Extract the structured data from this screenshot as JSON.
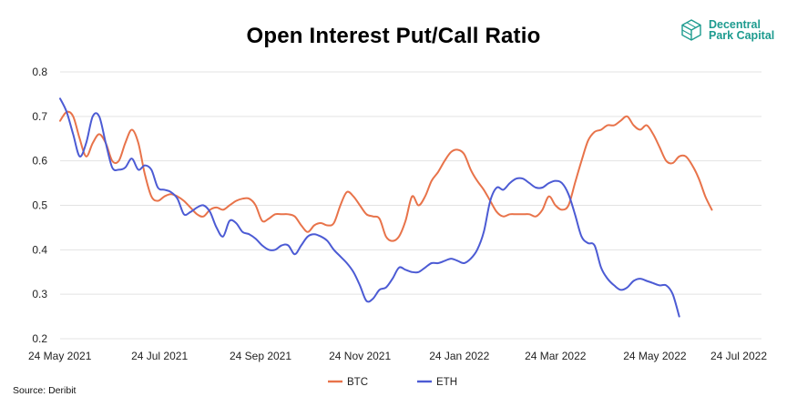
{
  "title": "Open Interest Put/Call Ratio",
  "logo": {
    "line1": "Decentral",
    "line2": "Park Capital",
    "color": "#1d9b8f"
  },
  "source": "Source: Deribit",
  "chart_data": {
    "type": "line",
    "title": "Open Interest Put/Call Ratio",
    "xlabel": "",
    "ylabel": "",
    "ylim": [
      0.2,
      0.8
    ],
    "yticks": [
      0.2,
      0.3,
      0.4,
      0.5,
      0.6,
      0.7,
      0.8
    ],
    "ytick_labels": [
      "0.2",
      "0.3",
      "0.4",
      "0.5",
      "0.6",
      "0.7",
      "0.8"
    ],
    "xlim": [
      "2021-05-24",
      "2022-07-24"
    ],
    "xticks": [
      "2021-05-24",
      "2021-07-24",
      "2021-09-24",
      "2021-11-24",
      "2022-01-24",
      "2022-03-24",
      "2022-05-24",
      "2022-07-24"
    ],
    "xtick_labels": [
      "24 May 2021",
      "24 Jul 2021",
      "24 Sep 2021",
      "24 Nov 2021",
      "24 Jan 2022",
      "24 Mar 2022",
      "24 May 2022",
      "24 Jul 2022"
    ],
    "grid": "horizontal",
    "legend_position": "bottom",
    "series": [
      {
        "name": "BTC",
        "color": "#e8734a",
        "points": [
          [
            "2021-05-24",
            0.69
          ],
          [
            "2021-05-28",
            0.71
          ],
          [
            "2021-06-01",
            0.7
          ],
          [
            "2021-06-05",
            0.65
          ],
          [
            "2021-06-09",
            0.61
          ],
          [
            "2021-06-13",
            0.64
          ],
          [
            "2021-06-17",
            0.66
          ],
          [
            "2021-06-21",
            0.64
          ],
          [
            "2021-06-25",
            0.6
          ],
          [
            "2021-06-29",
            0.6
          ],
          [
            "2021-07-03",
            0.64
          ],
          [
            "2021-07-07",
            0.67
          ],
          [
            "2021-07-11",
            0.64
          ],
          [
            "2021-07-15",
            0.57
          ],
          [
            "2021-07-19",
            0.52
          ],
          [
            "2021-07-23",
            0.51
          ],
          [
            "2021-07-27",
            0.52
          ],
          [
            "2021-07-31",
            0.525
          ],
          [
            "2021-08-04",
            0.52
          ],
          [
            "2021-08-08",
            0.51
          ],
          [
            "2021-08-12",
            0.495
          ],
          [
            "2021-08-16",
            0.48
          ],
          [
            "2021-08-20",
            0.475
          ],
          [
            "2021-08-24",
            0.49
          ],
          [
            "2021-08-28",
            0.495
          ],
          [
            "2021-09-01",
            0.49
          ],
          [
            "2021-09-05",
            0.5
          ],
          [
            "2021-09-09",
            0.51
          ],
          [
            "2021-09-13",
            0.515
          ],
          [
            "2021-09-17",
            0.515
          ],
          [
            "2021-09-21",
            0.5
          ],
          [
            "2021-09-25",
            0.465
          ],
          [
            "2021-09-29",
            0.47
          ],
          [
            "2021-10-03",
            0.48
          ],
          [
            "2021-10-07",
            0.48
          ],
          [
            "2021-10-11",
            0.48
          ],
          [
            "2021-10-15",
            0.475
          ],
          [
            "2021-10-19",
            0.455
          ],
          [
            "2021-10-23",
            0.44
          ],
          [
            "2021-10-27",
            0.455
          ],
          [
            "2021-10-31",
            0.46
          ],
          [
            "2021-11-04",
            0.455
          ],
          [
            "2021-11-08",
            0.46
          ],
          [
            "2021-11-12",
            0.5
          ],
          [
            "2021-11-16",
            0.53
          ],
          [
            "2021-11-20",
            0.52
          ],
          [
            "2021-11-24",
            0.5
          ],
          [
            "2021-11-28",
            0.48
          ],
          [
            "2021-12-02",
            0.475
          ],
          [
            "2021-12-06",
            0.47
          ],
          [
            "2021-12-10",
            0.43
          ],
          [
            "2021-12-14",
            0.42
          ],
          [
            "2021-12-18",
            0.43
          ],
          [
            "2021-12-22",
            0.465
          ],
          [
            "2021-12-26",
            0.52
          ],
          [
            "2021-12-30",
            0.5
          ],
          [
            "2022-01-03",
            0.52
          ],
          [
            "2022-01-07",
            0.555
          ],
          [
            "2022-01-11",
            0.575
          ],
          [
            "2022-01-15",
            0.6
          ],
          [
            "2022-01-19",
            0.62
          ],
          [
            "2022-01-23",
            0.625
          ],
          [
            "2022-01-27",
            0.615
          ],
          [
            "2022-01-31",
            0.58
          ],
          [
            "2022-02-04",
            0.555
          ],
          [
            "2022-02-08",
            0.535
          ],
          [
            "2022-02-12",
            0.51
          ],
          [
            "2022-02-16",
            0.485
          ],
          [
            "2022-02-20",
            0.475
          ],
          [
            "2022-02-24",
            0.48
          ],
          [
            "2022-02-28",
            0.48
          ],
          [
            "2022-03-04",
            0.48
          ],
          [
            "2022-03-08",
            0.48
          ],
          [
            "2022-03-12",
            0.475
          ],
          [
            "2022-03-16",
            0.49
          ],
          [
            "2022-03-20",
            0.52
          ],
          [
            "2022-03-24",
            0.5
          ],
          [
            "2022-03-28",
            0.49
          ],
          [
            "2022-04-01",
            0.5
          ],
          [
            "2022-04-05",
            0.55
          ],
          [
            "2022-04-09",
            0.6
          ],
          [
            "2022-04-13",
            0.645
          ],
          [
            "2022-04-17",
            0.665
          ],
          [
            "2022-04-21",
            0.67
          ],
          [
            "2022-04-25",
            0.68
          ],
          [
            "2022-04-29",
            0.68
          ],
          [
            "2022-05-03",
            0.69
          ],
          [
            "2022-05-07",
            0.7
          ],
          [
            "2022-05-11",
            0.68
          ],
          [
            "2022-05-15",
            0.67
          ],
          [
            "2022-05-19",
            0.68
          ],
          [
            "2022-05-23",
            0.66
          ],
          [
            "2022-05-27",
            0.63
          ],
          [
            "2022-05-31",
            0.6
          ],
          [
            "2022-06-04",
            0.595
          ],
          [
            "2022-06-08",
            0.61
          ],
          [
            "2022-06-12",
            0.61
          ],
          [
            "2022-06-16",
            0.59
          ],
          [
            "2022-06-20",
            0.56
          ],
          [
            "2022-06-24",
            0.52
          ],
          [
            "2022-06-28",
            0.49
          ]
        ]
      },
      {
        "name": "ETH",
        "color": "#4c5bd4",
        "points": [
          [
            "2021-05-24",
            0.74
          ],
          [
            "2021-05-28",
            0.71
          ],
          [
            "2021-06-01",
            0.66
          ],
          [
            "2021-06-05",
            0.61
          ],
          [
            "2021-06-09",
            0.64
          ],
          [
            "2021-06-13",
            0.7
          ],
          [
            "2021-06-17",
            0.7
          ],
          [
            "2021-06-21",
            0.64
          ],
          [
            "2021-06-25",
            0.585
          ],
          [
            "2021-06-29",
            0.58
          ],
          [
            "2021-07-03",
            0.585
          ],
          [
            "2021-07-07",
            0.605
          ],
          [
            "2021-07-11",
            0.58
          ],
          [
            "2021-07-15",
            0.59
          ],
          [
            "2021-07-19",
            0.58
          ],
          [
            "2021-07-23",
            0.54
          ],
          [
            "2021-07-27",
            0.535
          ],
          [
            "2021-07-31",
            0.53
          ],
          [
            "2021-08-04",
            0.515
          ],
          [
            "2021-08-08",
            0.48
          ],
          [
            "2021-08-12",
            0.485
          ],
          [
            "2021-08-16",
            0.495
          ],
          [
            "2021-08-20",
            0.5
          ],
          [
            "2021-08-24",
            0.485
          ],
          [
            "2021-08-28",
            0.45
          ],
          [
            "2021-09-01",
            0.43
          ],
          [
            "2021-09-05",
            0.465
          ],
          [
            "2021-09-09",
            0.46
          ],
          [
            "2021-09-13",
            0.44
          ],
          [
            "2021-09-17",
            0.435
          ],
          [
            "2021-09-21",
            0.425
          ],
          [
            "2021-09-25",
            0.41
          ],
          [
            "2021-09-29",
            0.4
          ],
          [
            "2021-10-03",
            0.4
          ],
          [
            "2021-10-07",
            0.41
          ],
          [
            "2021-10-11",
            0.41
          ],
          [
            "2021-10-15",
            0.39
          ],
          [
            "2021-10-19",
            0.41
          ],
          [
            "2021-10-23",
            0.43
          ],
          [
            "2021-10-27",
            0.435
          ],
          [
            "2021-10-31",
            0.43
          ],
          [
            "2021-11-04",
            0.42
          ],
          [
            "2021-11-08",
            0.4
          ],
          [
            "2021-11-12",
            0.385
          ],
          [
            "2021-11-16",
            0.37
          ],
          [
            "2021-11-20",
            0.35
          ],
          [
            "2021-11-24",
            0.32
          ],
          [
            "2021-11-28",
            0.285
          ],
          [
            "2021-12-02",
            0.29
          ],
          [
            "2021-12-06",
            0.31
          ],
          [
            "2021-12-10",
            0.315
          ],
          [
            "2021-12-14",
            0.335
          ],
          [
            "2021-12-18",
            0.36
          ],
          [
            "2021-12-22",
            0.355
          ],
          [
            "2021-12-26",
            0.35
          ],
          [
            "2021-12-30",
            0.35
          ],
          [
            "2022-01-03",
            0.36
          ],
          [
            "2022-01-07",
            0.37
          ],
          [
            "2022-01-11",
            0.37
          ],
          [
            "2022-01-15",
            0.375
          ],
          [
            "2022-01-19",
            0.38
          ],
          [
            "2022-01-23",
            0.375
          ],
          [
            "2022-01-27",
            0.37
          ],
          [
            "2022-01-31",
            0.38
          ],
          [
            "2022-02-04",
            0.4
          ],
          [
            "2022-02-08",
            0.44
          ],
          [
            "2022-02-12",
            0.51
          ],
          [
            "2022-02-16",
            0.54
          ],
          [
            "2022-02-20",
            0.535
          ],
          [
            "2022-02-24",
            0.55
          ],
          [
            "2022-02-28",
            0.56
          ],
          [
            "2022-03-04",
            0.56
          ],
          [
            "2022-03-08",
            0.55
          ],
          [
            "2022-03-12",
            0.54
          ],
          [
            "2022-03-16",
            0.54
          ],
          [
            "2022-03-20",
            0.55
          ],
          [
            "2022-03-24",
            0.555
          ],
          [
            "2022-03-28",
            0.55
          ],
          [
            "2022-04-01",
            0.525
          ],
          [
            "2022-04-05",
            0.48
          ],
          [
            "2022-04-09",
            0.43
          ],
          [
            "2022-04-13",
            0.415
          ],
          [
            "2022-04-17",
            0.41
          ],
          [
            "2022-04-21",
            0.36
          ],
          [
            "2022-04-25",
            0.335
          ],
          [
            "2022-04-29",
            0.32
          ],
          [
            "2022-05-03",
            0.31
          ],
          [
            "2022-05-07",
            0.315
          ],
          [
            "2022-05-11",
            0.33
          ],
          [
            "2022-05-15",
            0.335
          ],
          [
            "2022-05-19",
            0.33
          ],
          [
            "2022-05-23",
            0.325
          ],
          [
            "2022-05-27",
            0.32
          ],
          [
            "2022-05-31",
            0.32
          ],
          [
            "2022-06-04",
            0.3
          ],
          [
            "2022-06-08",
            0.25
          ]
        ]
      }
    ]
  }
}
